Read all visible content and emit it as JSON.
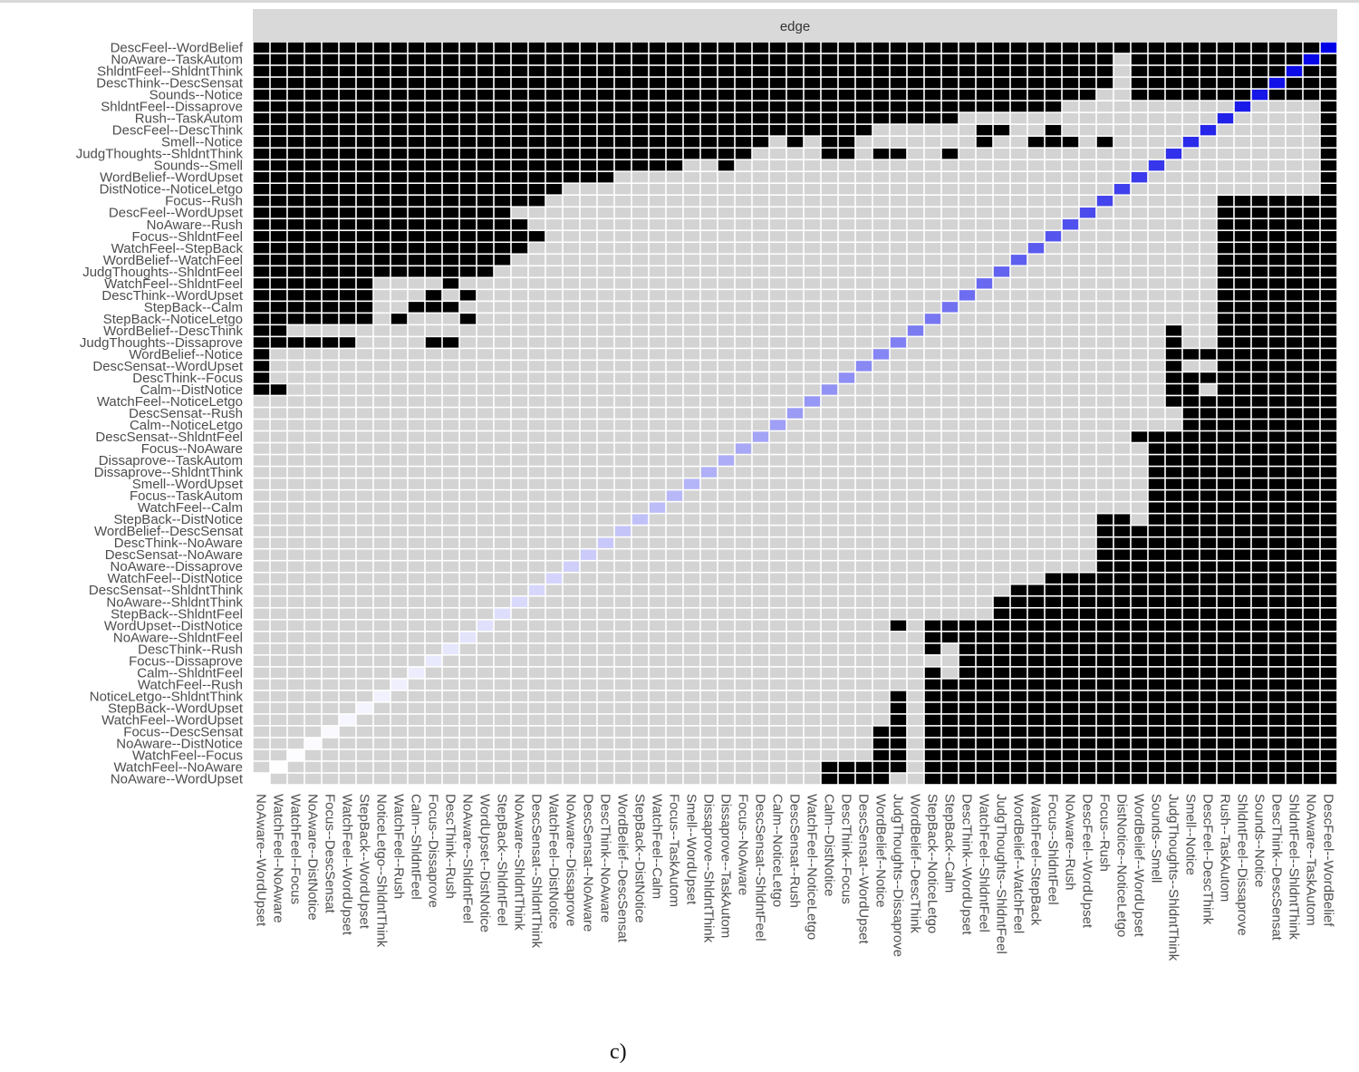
{
  "figure": {
    "caption": "c)"
  },
  "chart_data": {
    "type": "heatmap",
    "facet_label": "edge",
    "edges": [
      "NoAware--WordUpset",
      "WatchFeel--NoAware",
      "WatchFeel--Focus",
      "NoAware--DistNotice",
      "Focus--DescSensat",
      "WatchFeel--WordUpset",
      "StepBack--WordUpset",
      "NoticeLetgo--ShldntThink",
      "WatchFeel--Rush",
      "Calm--ShldntFeel",
      "Focus--Dissaprove",
      "DescThink--Rush",
      "NoAware--ShldntFeel",
      "WordUpset--DistNotice",
      "StepBack--ShldntFeel",
      "NoAware--ShldntThink",
      "DescSensat--ShldntThink",
      "WatchFeel--DistNotice",
      "NoAware--Dissaprove",
      "DescSensat--NoAware",
      "DescThink--NoAware",
      "WordBelief--DescSensat",
      "StepBack--DistNotice",
      "WatchFeel--Calm",
      "Focus--TaskAutom",
      "Smell--WordUpset",
      "Dissaprove--ShldntThink",
      "Dissaprove--TaskAutom",
      "Focus--NoAware",
      "DescSensat--ShldntFeel",
      "Calm--NoticeLetgo",
      "DescSensat--Rush",
      "WatchFeel--NoticeLetgo",
      "Calm--DistNotice",
      "DescThink--Focus",
      "DescSensat--WordUpset",
      "WordBelief--Notice",
      "JudgThoughts--Dissaprove",
      "WordBelief--DescThink",
      "StepBack--NoticeLetgo",
      "StepBack--Calm",
      "DescThink--WordUpset",
      "WatchFeel--ShldntFeel",
      "JudgThoughts--ShldntFeel",
      "WordBelief--WatchFeel",
      "WatchFeel--StepBack",
      "Focus--ShldntFeel",
      "NoAware--Rush",
      "DescFeel--WordUpset",
      "Focus--Rush",
      "DistNotice--NoticeLetgo",
      "WordBelief--WordUpset",
      "Sounds--Smell",
      "JudgThoughts--ShldntThink",
      "Smell--Notice",
      "DescFeel--DescThink",
      "Rush--TaskAutom",
      "ShldntFeel--Dissaprove",
      "Sounds--Notice",
      "DescThink--DescSensat",
      "ShldntFeel--ShldntThink",
      "NoAware--TaskAutom",
      "DescFeel--WordBelief"
    ],
    "cell_values": {
      "not_different": 0,
      "different": 1,
      "diagonal": "edge strength, increasing from the first edge to the last"
    },
    "different_cells_by_row_from_top": [
      "0-62",
      "0-49,51-62",
      "0-49,51-62",
      "0-49,51-62",
      "0-48,51-62",
      "0-40,41-41,42-42,41-41,42-42,41-41,42-42,41-41,42-42,44-44,45-46,43-43,40-40,62-62",
      "0-40,62-62",
      "0-35,42-42,43-43,30-31,46-46,62-62",
      "0-29,31-31,33-34,42-42,45-45,46-46,47-47,49-49,62-62",
      "0-28,33-33,34-34,37-37,40-40,36-36,62-62",
      "0-24,27-27,62-62",
      "0-20,62-62",
      "0-17,18-17,62-62",
      "0-16,56-62",
      "0-13,14-14,56-57,58-62",
      "0-15,56-62",
      "0-16,56-62",
      "0-15,56-62",
      "0-14,56-56,57-62",
      "0-13,56-56,57-62",
      "0-6,11-11,56-56,57-62",
      "0-6,10-10,12-12,56-56,57-62",
      "0-6,9-9,10-11,56-56,57-62",
      "0-6,8-8,12-12,56-56,57-62",
      "0-1,53-53,56-56,57-62",
      "0-5,10-11,53-53,56-62",
      "0-0,53-53,54-54,55-62",
      "0-0,53-53,56-62",
      "0-0,53-53,54-54,55-62",
      "0-1,53-53,54-54,56-62",
      "53-53,54-54,55-62",
      "54-54,55-55,56-62",
      "54-62",
      "51-51,52-62",
      "52-62",
      "52-62",
      "52-62",
      "52-62",
      "52-62",
      "52-62",
      "49-50,52-62",
      "49-62",
      "49-62",
      "49-62",
      "49-62",
      "46-48,49-49,50-62",
      "44-48,49-62",
      "43-62",
      "43-62",
      "37-37,39-41,42-62",
      "39-41,42-62",
      "39-39,41-62",
      "41-62",
      "39-39,41-62",
      "39-39,40-40,41-62",
      "37-37,39-62",
      "37-37,39-62",
      "37-37,39-62",
      "36-37,39-62",
      "36-37,39-62",
      "36-37,39-62",
      "33-37,39-62",
      "33-33,34-36,39-62"
    ]
  }
}
